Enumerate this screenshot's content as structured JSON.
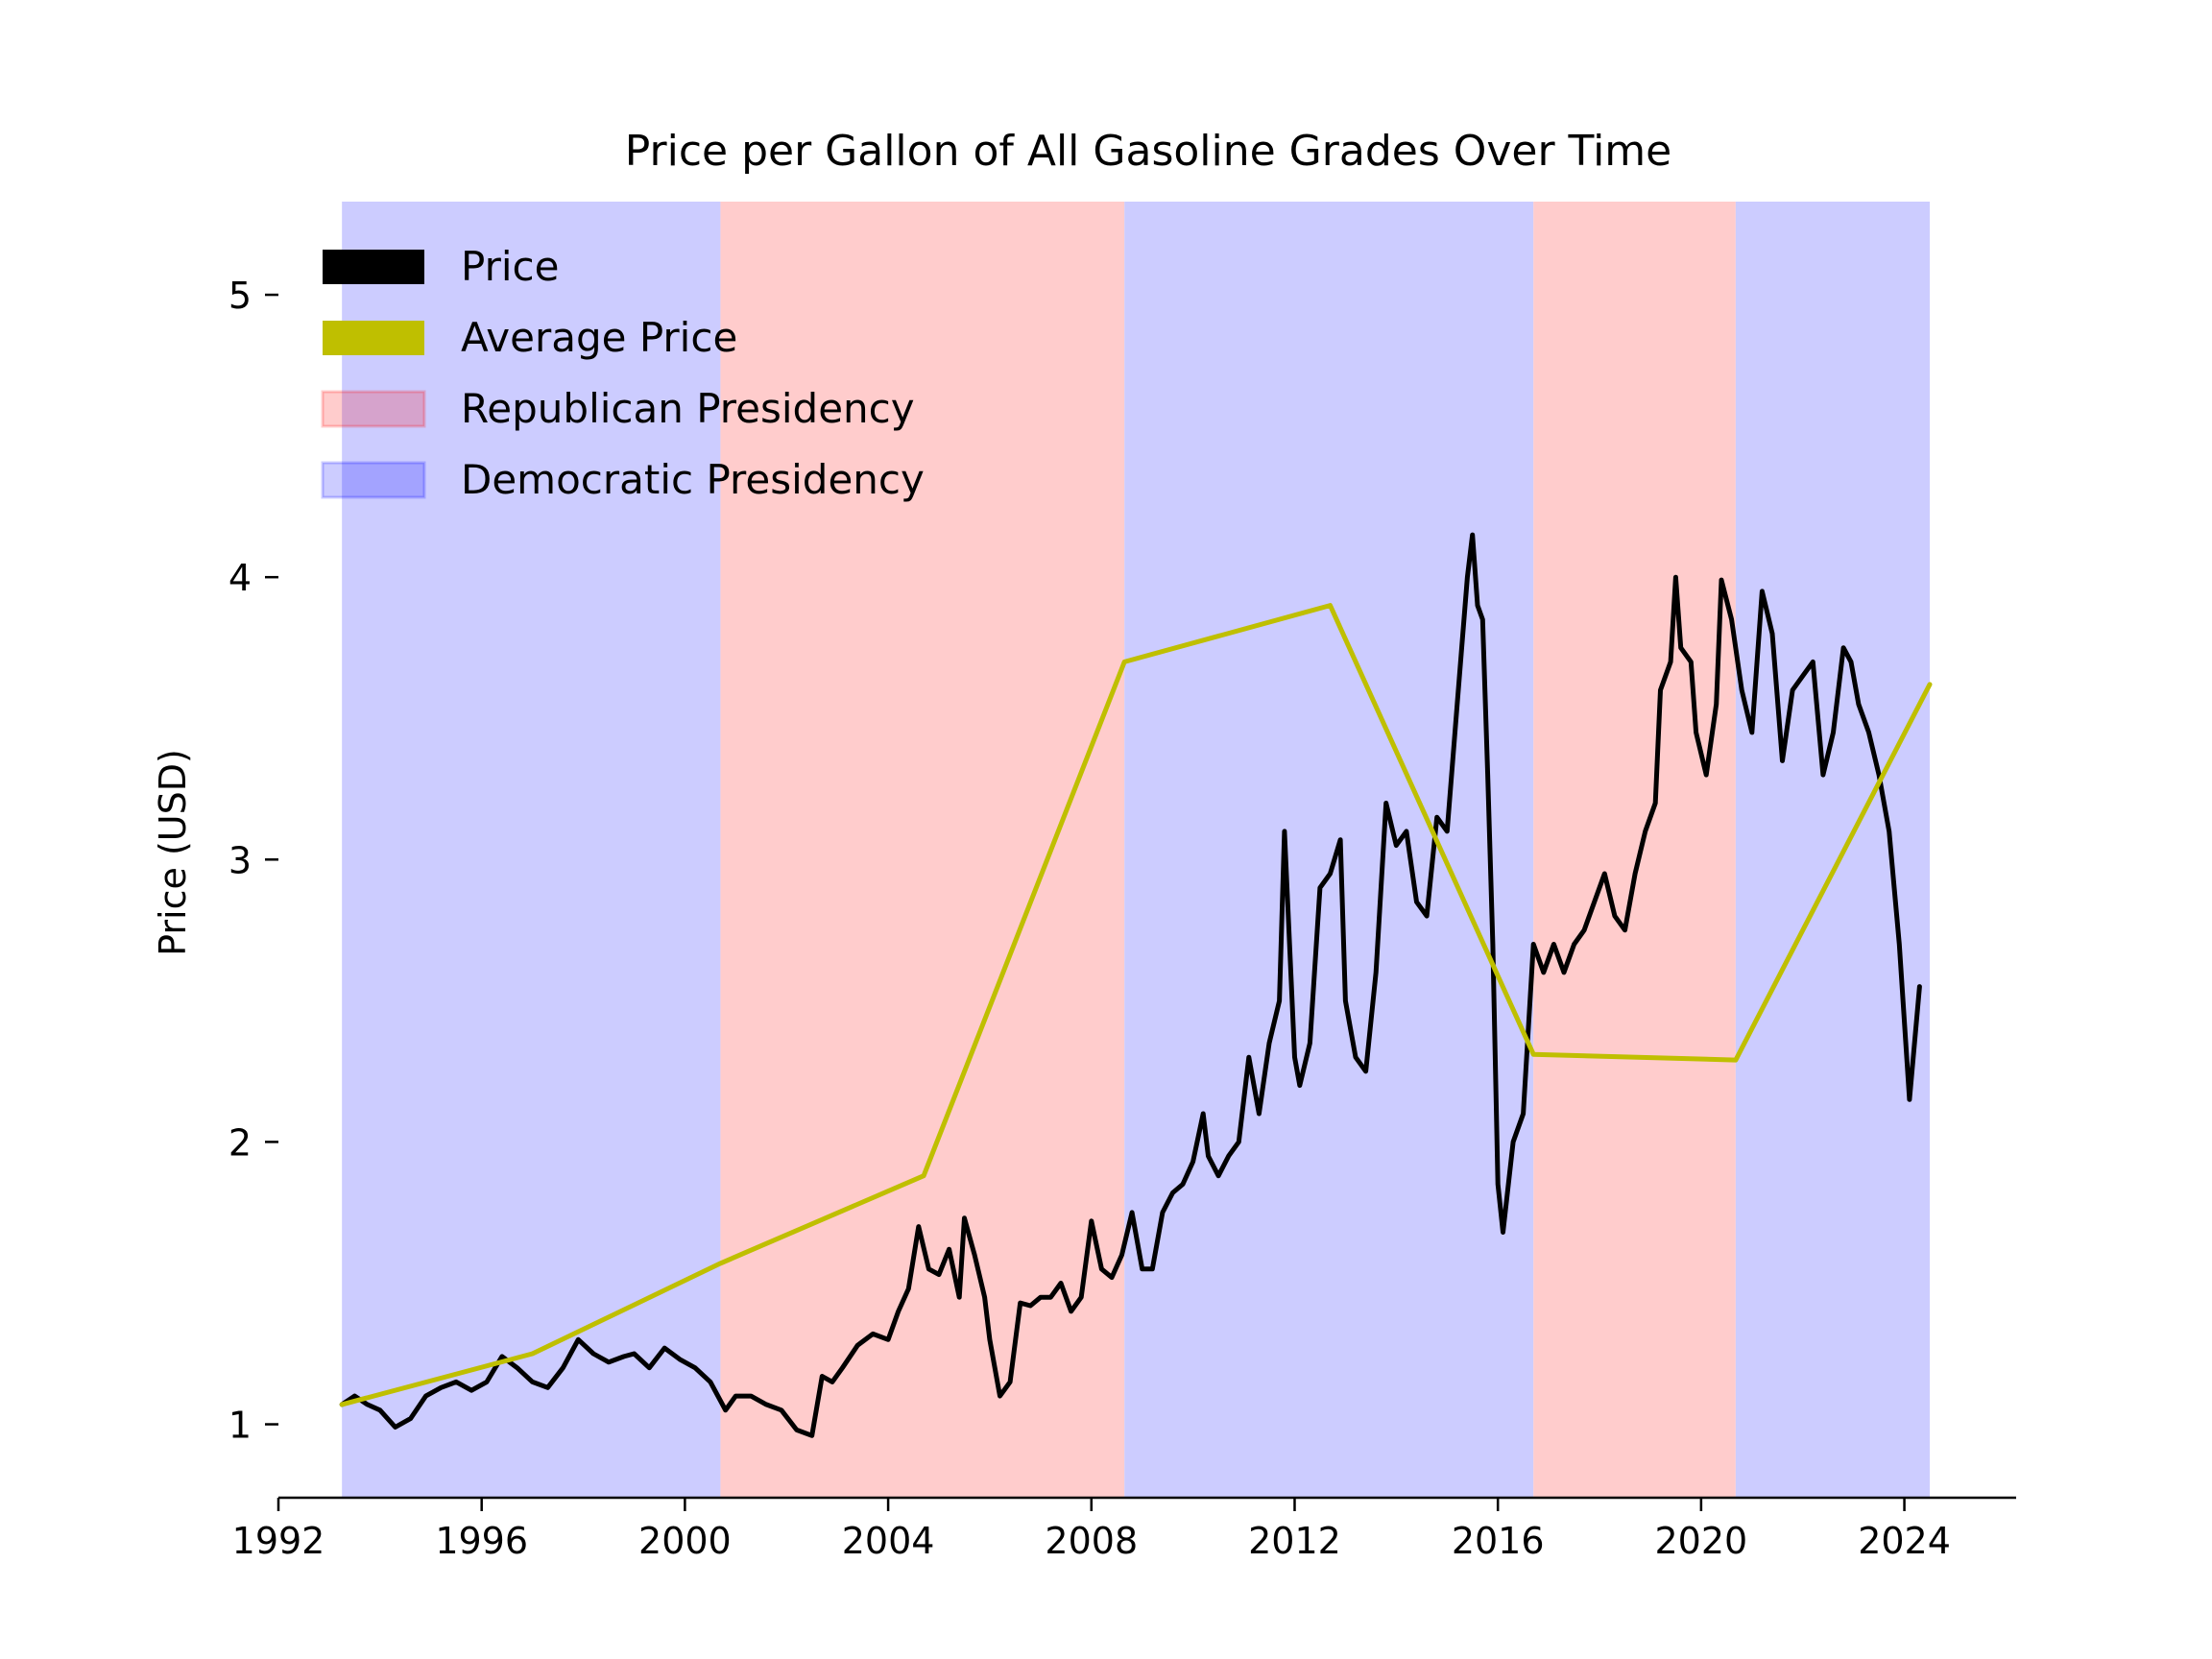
{
  "chart_data": {
    "type": "line",
    "title": "Price per Gallon of All Gasoline Grades Over Time",
    "xlabel": "",
    "ylabel": "Price (USD)",
    "xlim": [
      1992.0,
      2026.2
    ],
    "ylim": [
      0.74,
      5.33
    ],
    "x_ticks": [
      1992,
      1996,
      2000,
      2004,
      2008,
      2012,
      2016,
      2020,
      2024
    ],
    "y_ticks": [
      1,
      2,
      3,
      4,
      5
    ],
    "grid": false,
    "legend": {
      "position": "top-left",
      "entries": [
        {
          "label": "Price",
          "color": "#000000",
          "kind": "line"
        },
        {
          "label": "Average Price",
          "color": "#bfbf00",
          "kind": "line"
        },
        {
          "label": "Republican Presidency",
          "color": "#ff0000",
          "kind": "patch"
        },
        {
          "label": "Democratic Presidency",
          "color": "#0000ff",
          "kind": "patch"
        }
      ]
    },
    "shaded_regions": [
      {
        "party": "Democratic",
        "start": 1993.25,
        "end": 2000.7,
        "color": "#ccccff"
      },
      {
        "party": "Republican",
        "start": 2000.7,
        "end": 2008.65,
        "color": "#ffcccc"
      },
      {
        "party": "Democratic",
        "start": 2008.65,
        "end": 2016.7,
        "color": "#ccccff"
      },
      {
        "party": "Republican",
        "start": 2016.7,
        "end": 2020.68,
        "color": "#ffcccc"
      },
      {
        "party": "Democratic",
        "start": 2020.68,
        "end": 2024.5,
        "color": "#ccccff"
      }
    ],
    "series": [
      {
        "name": "Price",
        "color": "#000000",
        "points": [
          [
            1993.25,
            1.07
          ],
          [
            1993.5,
            1.1
          ],
          [
            1993.75,
            1.07
          ],
          [
            1994.0,
            1.05
          ],
          [
            1994.3,
            0.99
          ],
          [
            1994.6,
            1.02
          ],
          [
            1994.9,
            1.1
          ],
          [
            1995.2,
            1.13
          ],
          [
            1995.5,
            1.15
          ],
          [
            1995.8,
            1.12
          ],
          [
            1996.1,
            1.15
          ],
          [
            1996.4,
            1.24
          ],
          [
            1996.7,
            1.2
          ],
          [
            1997.0,
            1.15
          ],
          [
            1997.3,
            1.13
          ],
          [
            1997.6,
            1.2
          ],
          [
            1997.9,
            1.3
          ],
          [
            1998.2,
            1.25
          ],
          [
            1998.5,
            1.22
          ],
          [
            1998.8,
            1.24
          ],
          [
            1999.0,
            1.25
          ],
          [
            1999.3,
            1.2
          ],
          [
            1999.6,
            1.27
          ],
          [
            1999.9,
            1.23
          ],
          [
            2000.2,
            1.2
          ],
          [
            2000.5,
            1.15
          ],
          [
            2000.8,
            1.05
          ],
          [
            2001.0,
            1.1
          ],
          [
            2001.3,
            1.1
          ],
          [
            2001.6,
            1.07
          ],
          [
            2001.9,
            1.05
          ],
          [
            2002.2,
            0.98
          ],
          [
            2002.5,
            0.96
          ],
          [
            2002.7,
            1.17
          ],
          [
            2002.9,
            1.15
          ],
          [
            2003.1,
            1.2
          ],
          [
            2003.4,
            1.28
          ],
          [
            2003.7,
            1.32
          ],
          [
            2004.0,
            1.3
          ],
          [
            2004.2,
            1.4
          ],
          [
            2004.4,
            1.48
          ],
          [
            2004.6,
            1.7
          ],
          [
            2004.8,
            1.55
          ],
          [
            2005.0,
            1.53
          ],
          [
            2005.2,
            1.62
          ],
          [
            2005.4,
            1.45
          ],
          [
            2005.5,
            1.73
          ],
          [
            2005.7,
            1.6
          ],
          [
            2005.9,
            1.45
          ],
          [
            2006.0,
            1.3
          ],
          [
            2006.2,
            1.1
          ],
          [
            2006.4,
            1.15
          ],
          [
            2006.6,
            1.43
          ],
          [
            2006.8,
            1.42
          ],
          [
            2007.0,
            1.45
          ],
          [
            2007.2,
            1.45
          ],
          [
            2007.4,
            1.5
          ],
          [
            2007.6,
            1.4
          ],
          [
            2007.8,
            1.45
          ],
          [
            2008.0,
            1.72
          ],
          [
            2008.2,
            1.55
          ],
          [
            2008.4,
            1.52
          ],
          [
            2008.6,
            1.6
          ],
          [
            2008.8,
            1.75
          ],
          [
            2009.0,
            1.55
          ],
          [
            2009.2,
            1.55
          ],
          [
            2009.4,
            1.75
          ],
          [
            2009.6,
            1.82
          ],
          [
            2009.8,
            1.85
          ],
          [
            2010.0,
            1.93
          ],
          [
            2010.2,
            2.1
          ],
          [
            2010.3,
            1.95
          ],
          [
            2010.5,
            1.88
          ],
          [
            2010.7,
            1.95
          ],
          [
            2010.9,
            2.0
          ],
          [
            2011.1,
            2.3
          ],
          [
            2011.3,
            2.1
          ],
          [
            2011.5,
            2.35
          ],
          [
            2011.7,
            2.5
          ],
          [
            2011.8,
            3.1
          ],
          [
            2011.9,
            2.7
          ],
          [
            2012.0,
            2.3
          ],
          [
            2012.1,
            2.2
          ],
          [
            2012.3,
            2.35
          ],
          [
            2012.5,
            2.9
          ],
          [
            2012.7,
            2.95
          ],
          [
            2012.9,
            3.07
          ],
          [
            2013.0,
            2.5
          ],
          [
            2013.2,
            2.3
          ],
          [
            2013.4,
            2.25
          ],
          [
            2013.6,
            2.6
          ],
          [
            2013.8,
            3.2
          ],
          [
            2014.0,
            3.05
          ],
          [
            2014.2,
            3.1
          ],
          [
            2014.4,
            2.85
          ],
          [
            2014.6,
            2.8
          ],
          [
            2014.8,
            3.15
          ],
          [
            2015.0,
            3.1
          ],
          [
            2015.2,
            3.55
          ],
          [
            2015.4,
            4.0
          ],
          [
            2015.5,
            4.15
          ],
          [
            2015.6,
            3.9
          ],
          [
            2015.7,
            3.85
          ],
          [
            2015.8,
            3.3
          ],
          [
            2015.9,
            2.7
          ],
          [
            2016.0,
            1.85
          ],
          [
            2016.1,
            1.68
          ],
          [
            2016.3,
            2.0
          ],
          [
            2016.5,
            2.1
          ],
          [
            2016.7,
            2.7
          ],
          [
            2016.9,
            2.6
          ],
          [
            2017.1,
            2.7
          ],
          [
            2017.3,
            2.6
          ],
          [
            2017.5,
            2.7
          ],
          [
            2017.7,
            2.75
          ],
          [
            2017.9,
            2.85
          ],
          [
            2018.1,
            2.95
          ],
          [
            2018.3,
            2.8
          ],
          [
            2018.5,
            2.75
          ],
          [
            2018.7,
            2.95
          ],
          [
            2018.9,
            3.1
          ],
          [
            2019.1,
            3.2
          ],
          [
            2019.2,
            3.6
          ],
          [
            2019.4,
            3.7
          ],
          [
            2019.5,
            4.0
          ],
          [
            2019.6,
            3.75
          ],
          [
            2019.8,
            3.7
          ],
          [
            2019.9,
            3.45
          ],
          [
            2020.1,
            3.3
          ],
          [
            2020.3,
            3.55
          ],
          [
            2020.4,
            3.99
          ],
          [
            2020.6,
            3.85
          ],
          [
            2020.8,
            3.6
          ],
          [
            2021.0,
            3.45
          ],
          [
            2021.2,
            3.95
          ],
          [
            2021.4,
            3.8
          ],
          [
            2021.6,
            3.35
          ],
          [
            2021.8,
            3.6
          ],
          [
            2022.0,
            3.65
          ],
          [
            2022.2,
            3.7
          ],
          [
            2022.4,
            3.3
          ],
          [
            2022.6,
            3.45
          ],
          [
            2022.8,
            3.75
          ],
          [
            2022.95,
            3.7
          ],
          [
            2023.1,
            3.55
          ],
          [
            2023.3,
            3.45
          ],
          [
            2023.5,
            3.3
          ],
          [
            2023.7,
            3.1
          ],
          [
            2023.9,
            2.7
          ],
          [
            2024.1,
            2.15
          ],
          [
            2024.3,
            2.55
          ]
        ]
      },
      {
        "name": "Average Price",
        "color": "#bfbf00",
        "points": [
          [
            1993.25,
            1.07
          ],
          [
            1997.0,
            1.25
          ],
          [
            2000.7,
            1.57
          ],
          [
            2004.7,
            1.88
          ],
          [
            2008.65,
            3.7
          ],
          [
            2012.7,
            3.9
          ],
          [
            2016.7,
            2.31
          ],
          [
            2020.68,
            2.29
          ],
          [
            2024.5,
            3.62
          ]
        ]
      }
    ]
  }
}
